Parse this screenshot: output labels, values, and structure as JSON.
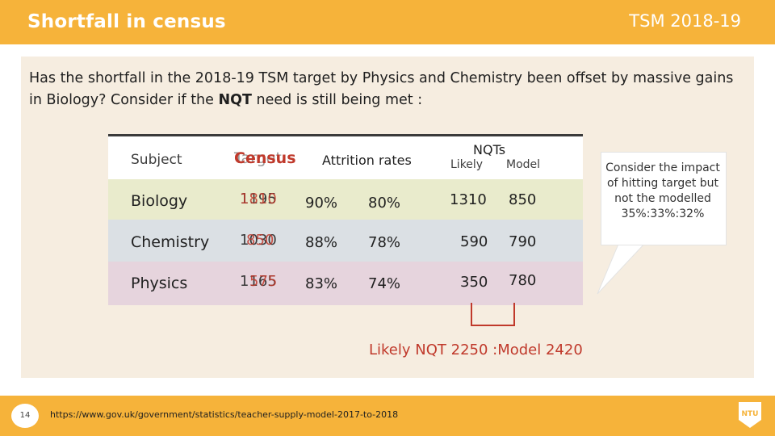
{
  "header": {
    "title": "Shortfall in census",
    "label": "TSM 2018-19"
  },
  "intro": {
    "part1": "Has the shortfall in the 2018-19 TSM target by Physics and Chemistry been offset by massive gains in Biology? Consider if the ",
    "bold": "NQT",
    "part2": " need is still being met :"
  },
  "table": {
    "headers": {
      "subject": "Subject",
      "target": "Target",
      "census": "Census",
      "attrition": "Attrition rates",
      "nqts": "NQTs",
      "likely": "Likely",
      "model": "Model"
    },
    "rows": [
      {
        "subject": "Biology",
        "target": "1195",
        "census": "1810",
        "attr1": "90%",
        "attr2": "80%",
        "likely": "1310",
        "model": "850"
      },
      {
        "subject": "Chemistry",
        "target": "1030",
        "census": "850",
        "attr1": "88%",
        "attr2": "78%",
        "likely": "590",
        "model": "790"
      },
      {
        "subject": "Physics",
        "target": "1165",
        "census": "575",
        "attr1": "83%",
        "attr2": "74%",
        "likely": "350",
        "model": "780"
      }
    ]
  },
  "callout": {
    "text": "Consider the impact of hitting target but not the modelled 35%:33%:32%"
  },
  "summary": {
    "text": "Likely NQT 2250 :Model 2420"
  },
  "footer": {
    "page": "14",
    "source": "https://www.gov.uk/government/statistics/teacher-supply-model-2017-to-2018",
    "logo": "NTU"
  },
  "colors": {
    "accent": "#f6b33a",
    "highlight": "#c0392b",
    "bio": "#e9ebcc",
    "chem": "#dbe0e4",
    "phys": "#e6d4dd"
  }
}
